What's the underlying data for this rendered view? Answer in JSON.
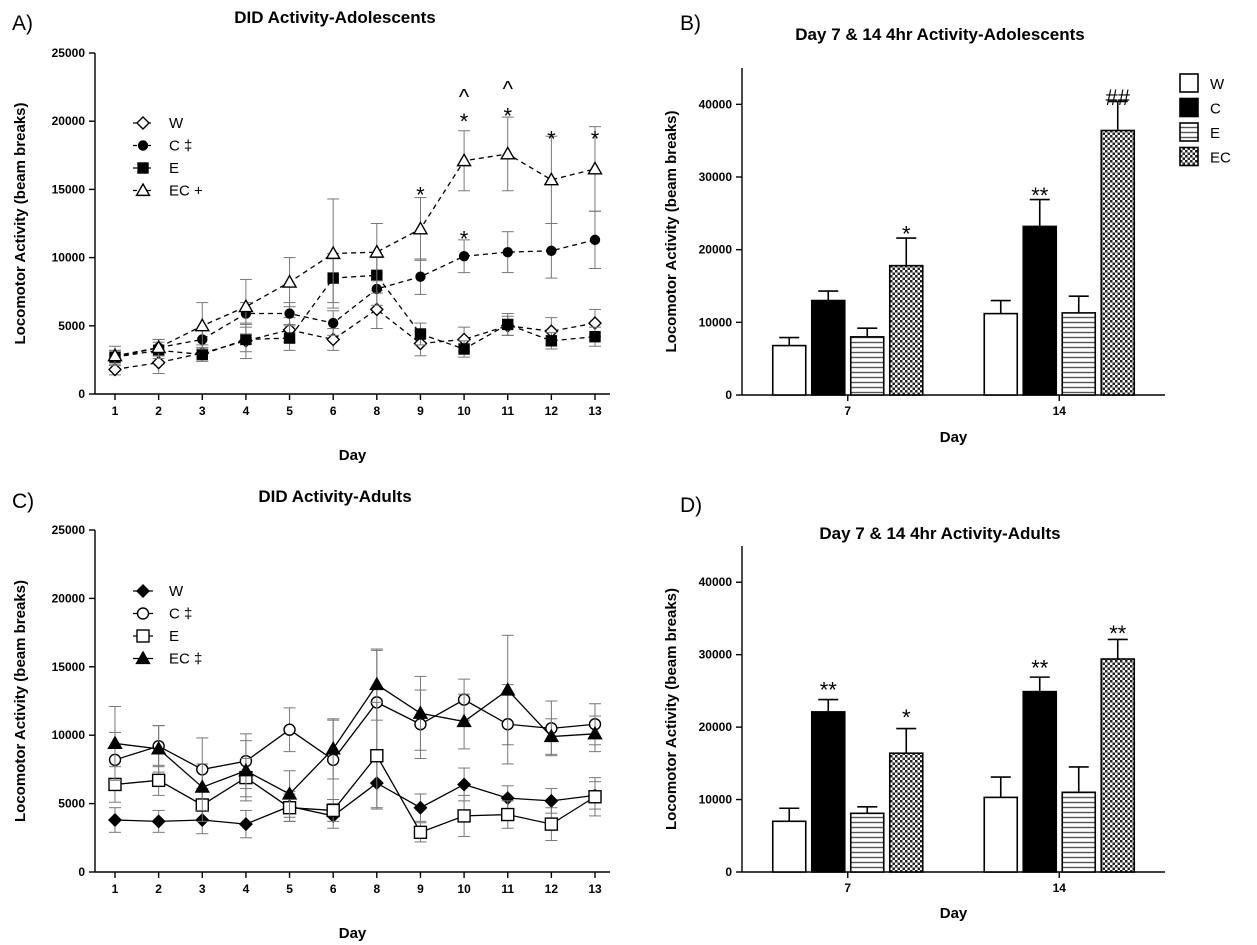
{
  "chart_data": [
    {
      "panel": "A)",
      "type": "line",
      "title": "DID Activity-Adolescents",
      "xlabel": "Day",
      "ylabel": "Locomotor Activity (beam breaks)",
      "x": [
        "1",
        "2",
        "3",
        "4",
        "5",
        "6",
        "8",
        "9",
        "10",
        "11",
        "12",
        "13"
      ],
      "ylim": [
        0,
        25000
      ],
      "yticks": [
        "0",
        "5000",
        "10000",
        "15000",
        "20000",
        "25000"
      ],
      "legend_position": "top-left",
      "series": [
        {
          "name": "W",
          "legend_label": "W",
          "marker": "diamond-open",
          "dash": "dashed",
          "values": [
            1800,
            2300,
            3000,
            3900,
            4700,
            4000,
            6200,
            3700,
            4000,
            5000,
            4600,
            5200
          ],
          "errors": [
            400,
            800,
            600,
            1300,
            900,
            800,
            1400,
            900,
            900,
            700,
            1000,
            1000
          ]
        },
        {
          "name": "C",
          "legend_label": "C ‡",
          "marker": "circle-filled",
          "dash": "dashed",
          "values": [
            2700,
            3400,
            4000,
            5900,
            5900,
            5200,
            7700,
            8600,
            10100,
            10400,
            10500,
            11300
          ],
          "errors": [
            500,
            600,
            700,
            800,
            800,
            900,
            1200,
            1300,
            1200,
            1500,
            2000,
            2100
          ]
        },
        {
          "name": "E",
          "legend_label": "E",
          "marker": "square-filled",
          "dash": "dashed",
          "values": [
            2700,
            3200,
            2900,
            4000,
            4100,
            8500,
            8700,
            4400,
            3300,
            5100,
            3900,
            4200
          ],
          "errors": [
            500,
            600,
            500,
            900,
            900,
            1800,
            1300,
            800,
            600,
            800,
            600,
            700
          ]
        },
        {
          "name": "EC",
          "legend_label": "EC +",
          "marker": "triangle-open",
          "dash": "dashed",
          "values": [
            2800,
            3400,
            5000,
            6400,
            8200,
            10300,
            10400,
            12100,
            17100,
            17600,
            15700,
            16500
          ],
          "errors": [
            700,
            600,
            1700,
            2000,
            1800,
            4000,
            2100,
            2300,
            2200,
            2700,
            3200,
            3100
          ]
        }
      ],
      "annotations": [
        {
          "text": "*",
          "x": "9",
          "y": 15200
        },
        {
          "text": "*",
          "x": "10",
          "y": 20600
        },
        {
          "text": "^",
          "x": "10",
          "y": 22100
        },
        {
          "text": "*",
          "x": "11",
          "y": 21000
        },
        {
          "text": "^",
          "x": "11",
          "y": 22700
        },
        {
          "text": "*",
          "x": "12",
          "y": 19300
        },
        {
          "text": "*",
          "x": "13",
          "y": 19300
        },
        {
          "text": "*",
          "x": "10",
          "y": 12000
        }
      ]
    },
    {
      "panel": "B)",
      "type": "bar",
      "title": "Day 7 & 14  4hr Activity-Adolescents",
      "xlabel": "Day",
      "ylabel": "Locomotor Activity (beam breaks)",
      "categories": [
        "7",
        "14"
      ],
      "ylim": [
        0,
        45000
      ],
      "yticks": [
        "0",
        "10000",
        "20000",
        "30000",
        "40000"
      ],
      "legend_position": "right",
      "series": [
        {
          "name": "W",
          "pattern": "white",
          "values": [
            6800,
            11200
          ],
          "errors": [
            1100,
            1800
          ]
        },
        {
          "name": "C",
          "pattern": "black",
          "values": [
            13000,
            23200
          ],
          "errors": [
            1300,
            3700
          ]
        },
        {
          "name": "E",
          "pattern": "hlines",
          "values": [
            8000,
            11300
          ],
          "errors": [
            1200,
            2300
          ]
        },
        {
          "name": "EC",
          "pattern": "check",
          "values": [
            17800,
            36400
          ],
          "errors": [
            3800,
            4000
          ]
        }
      ],
      "annotations": [
        {
          "text": "*",
          "category": "7",
          "series": "EC",
          "y": 22500
        },
        {
          "text": "**",
          "category": "14",
          "series": "C",
          "y": 27800
        },
        {
          "text": "##",
          "category": "14",
          "series": "EC",
          "y": 41300
        }
      ]
    },
    {
      "panel": "C)",
      "type": "line",
      "title": "DID Activity-Adults",
      "xlabel": "Day",
      "ylabel": "Locomotor Activity (beam breaks)",
      "x": [
        "1",
        "2",
        "3",
        "4",
        "5",
        "6",
        "8",
        "9",
        "10",
        "11",
        "12",
        "13"
      ],
      "ylim": [
        0,
        25000
      ],
      "yticks": [
        "0",
        "5000",
        "10000",
        "15000",
        "20000",
        "25000"
      ],
      "legend_position": "top-left",
      "series": [
        {
          "name": "W",
          "legend_label": "W",
          "marker": "diamond-filled",
          "dash": "solid",
          "values": [
            3800,
            3700,
            3800,
            3500,
            4800,
            4100,
            6500,
            4700,
            6400,
            5400,
            5200,
            5600
          ],
          "errors": [
            900,
            800,
            1000,
            1000,
            1100,
            900,
            1800,
            1000,
            1200,
            900,
            900,
            1000
          ]
        },
        {
          "name": "C",
          "legend_label": "C ‡",
          "marker": "circle-open",
          "dash": "solid",
          "values": [
            8200,
            9200,
            7500,
            8100,
            10400,
            8200,
            12400,
            10800,
            12600,
            10800,
            10500,
            10800
          ],
          "errors": [
            2000,
            1500,
            2300,
            2000,
            1600,
            2900,
            3800,
            2500,
            1500,
            2900,
            2000,
            1500
          ]
        },
        {
          "name": "E",
          "legend_label": "E",
          "marker": "square-open",
          "dash": "solid",
          "values": [
            6400,
            6700,
            4900,
            6900,
            4700,
            4500,
            8500,
            2900,
            4100,
            4200,
            3500,
            5500
          ],
          "errors": [
            1300,
            1100,
            1200,
            1400,
            1000,
            800,
            3900,
            700,
            1500,
            1000,
            1200,
            1400
          ]
        },
        {
          "name": "EC",
          "legend_label": "EC ‡",
          "marker": "triangle-filled",
          "dash": "solid",
          "values": [
            9400,
            9000,
            6200,
            7400,
            5700,
            9000,
            13700,
            11600,
            11000,
            13300,
            9900,
            10100
          ],
          "errors": [
            2700,
            1700,
            1700,
            2200,
            1700,
            2200,
            2600,
            2700,
            2000,
            4000,
            1300,
            1300
          ]
        }
      ]
    },
    {
      "panel": "D)",
      "type": "bar",
      "title": "Day 7 & 14 4hr Activity-Adults",
      "xlabel": "Day",
      "ylabel": "Locomotor Activity (beam breaks)",
      "categories": [
        "7",
        "14"
      ],
      "ylim": [
        0,
        45000
      ],
      "yticks": [
        "0",
        "10000",
        "20000",
        "30000",
        "40000"
      ],
      "series": [
        {
          "name": "W",
          "pattern": "white",
          "values": [
            7000,
            10300
          ],
          "errors": [
            1800,
            2800
          ]
        },
        {
          "name": "C",
          "pattern": "black",
          "values": [
            22100,
            24900
          ],
          "errors": [
            1700,
            2000
          ]
        },
        {
          "name": "E",
          "pattern": "hlines",
          "values": [
            8100,
            11000
          ],
          "errors": [
            900,
            3500
          ]
        },
        {
          "name": "EC",
          "pattern": "check",
          "values": [
            16400,
            29400
          ],
          "errors": [
            3400,
            2700
          ]
        }
      ],
      "annotations": [
        {
          "text": "**",
          "category": "7",
          "series": "C",
          "y": 25500
        },
        {
          "text": "*",
          "category": "7",
          "series": "EC",
          "y": 21700
        },
        {
          "text": "**",
          "category": "14",
          "series": "C",
          "y": 28500
        },
        {
          "text": "**",
          "category": "14",
          "series": "EC",
          "y": 33300
        }
      ]
    }
  ]
}
